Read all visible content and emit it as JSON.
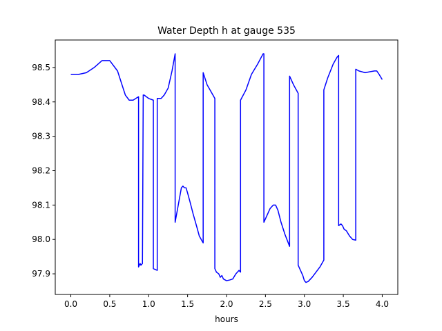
{
  "chart_data": {
    "type": "line",
    "title": "Water Depth h at gauge 535",
    "xlabel": "hours",
    "ylabel": "",
    "xlim": [
      -0.2,
      4.2
    ],
    "ylim": [
      97.84,
      98.58
    ],
    "xticks": [
      0.0,
      0.5,
      1.0,
      1.5,
      2.0,
      2.5,
      3.0,
      3.5,
      4.0
    ],
    "xtick_labels": [
      "0.0",
      "0.5",
      "1.0",
      "1.5",
      "2.0",
      "2.5",
      "3.0",
      "3.5",
      "4.0"
    ],
    "yticks": [
      97.9,
      98.0,
      98.1,
      98.2,
      98.3,
      98.4,
      98.5
    ],
    "ytick_labels": [
      "97.9",
      "98.0",
      "98.1",
      "98.2",
      "98.3",
      "98.4",
      "98.5"
    ],
    "grid": false,
    "series": [
      {
        "color": "#0000ff",
        "x": [
          0.0,
          0.1,
          0.2,
          0.3,
          0.4,
          0.5,
          0.6,
          0.7,
          0.75,
          0.8,
          0.87,
          0.87,
          0.89,
          0.9,
          0.92,
          0.93,
          0.94,
          0.94,
          1.0,
          1.06,
          1.06,
          1.11,
          1.11,
          1.16,
          1.2,
          1.25,
          1.3,
          1.34,
          1.34,
          1.38,
          1.42,
          1.44,
          1.46,
          1.48,
          1.5,
          1.53,
          1.57,
          1.62,
          1.65,
          1.7,
          1.7,
          1.75,
          1.8,
          1.85,
          1.85,
          1.87,
          1.9,
          1.92,
          1.94,
          1.96,
          2.0,
          2.04,
          2.08,
          2.12,
          2.16,
          2.18,
          2.18,
          2.25,
          2.32,
          2.4,
          2.47,
          2.48,
          2.48,
          2.52,
          2.56,
          2.6,
          2.63,
          2.66,
          2.7,
          2.75,
          2.81,
          2.81,
          2.86,
          2.92,
          2.92,
          2.96,
          2.98,
          3.0,
          3.02,
          3.05,
          3.1,
          3.15,
          3.2,
          3.25,
          3.25,
          3.3,
          3.37,
          3.42,
          3.44,
          3.44,
          3.47,
          3.49,
          3.51,
          3.54,
          3.58,
          3.62,
          3.66,
          3.66,
          3.7,
          3.78,
          3.85,
          3.9,
          3.93,
          3.96,
          4.0
        ],
        "y": [
          98.48,
          98.48,
          98.485,
          98.5,
          98.52,
          98.52,
          98.49,
          98.42,
          98.405,
          98.405,
          98.415,
          97.92,
          97.93,
          97.925,
          97.93,
          98.42,
          98.42,
          98.42,
          98.41,
          98.405,
          97.915,
          97.91,
          98.41,
          98.41,
          98.42,
          98.44,
          98.49,
          98.54,
          98.05,
          98.1,
          98.15,
          98.155,
          98.15,
          98.15,
          98.135,
          98.11,
          98.075,
          98.035,
          98.01,
          97.99,
          98.485,
          98.45,
          98.43,
          98.41,
          97.915,
          97.905,
          97.9,
          97.89,
          97.895,
          97.885,
          97.88,
          97.882,
          97.885,
          97.9,
          97.91,
          97.905,
          98.405,
          98.435,
          98.48,
          98.51,
          98.54,
          98.54,
          98.05,
          98.07,
          98.09,
          98.1,
          98.1,
          98.085,
          98.05,
          98.015,
          97.98,
          98.475,
          98.45,
          98.425,
          97.925,
          97.905,
          97.895,
          97.88,
          97.875,
          97.878,
          97.89,
          97.905,
          97.92,
          97.94,
          98.435,
          98.47,
          98.51,
          98.53,
          98.535,
          98.04,
          98.045,
          98.04,
          98.03,
          98.025,
          98.01,
          98.0,
          97.998,
          98.495,
          98.49,
          98.485,
          98.488,
          98.49,
          98.49,
          98.48,
          98.465
        ]
      }
    ]
  }
}
